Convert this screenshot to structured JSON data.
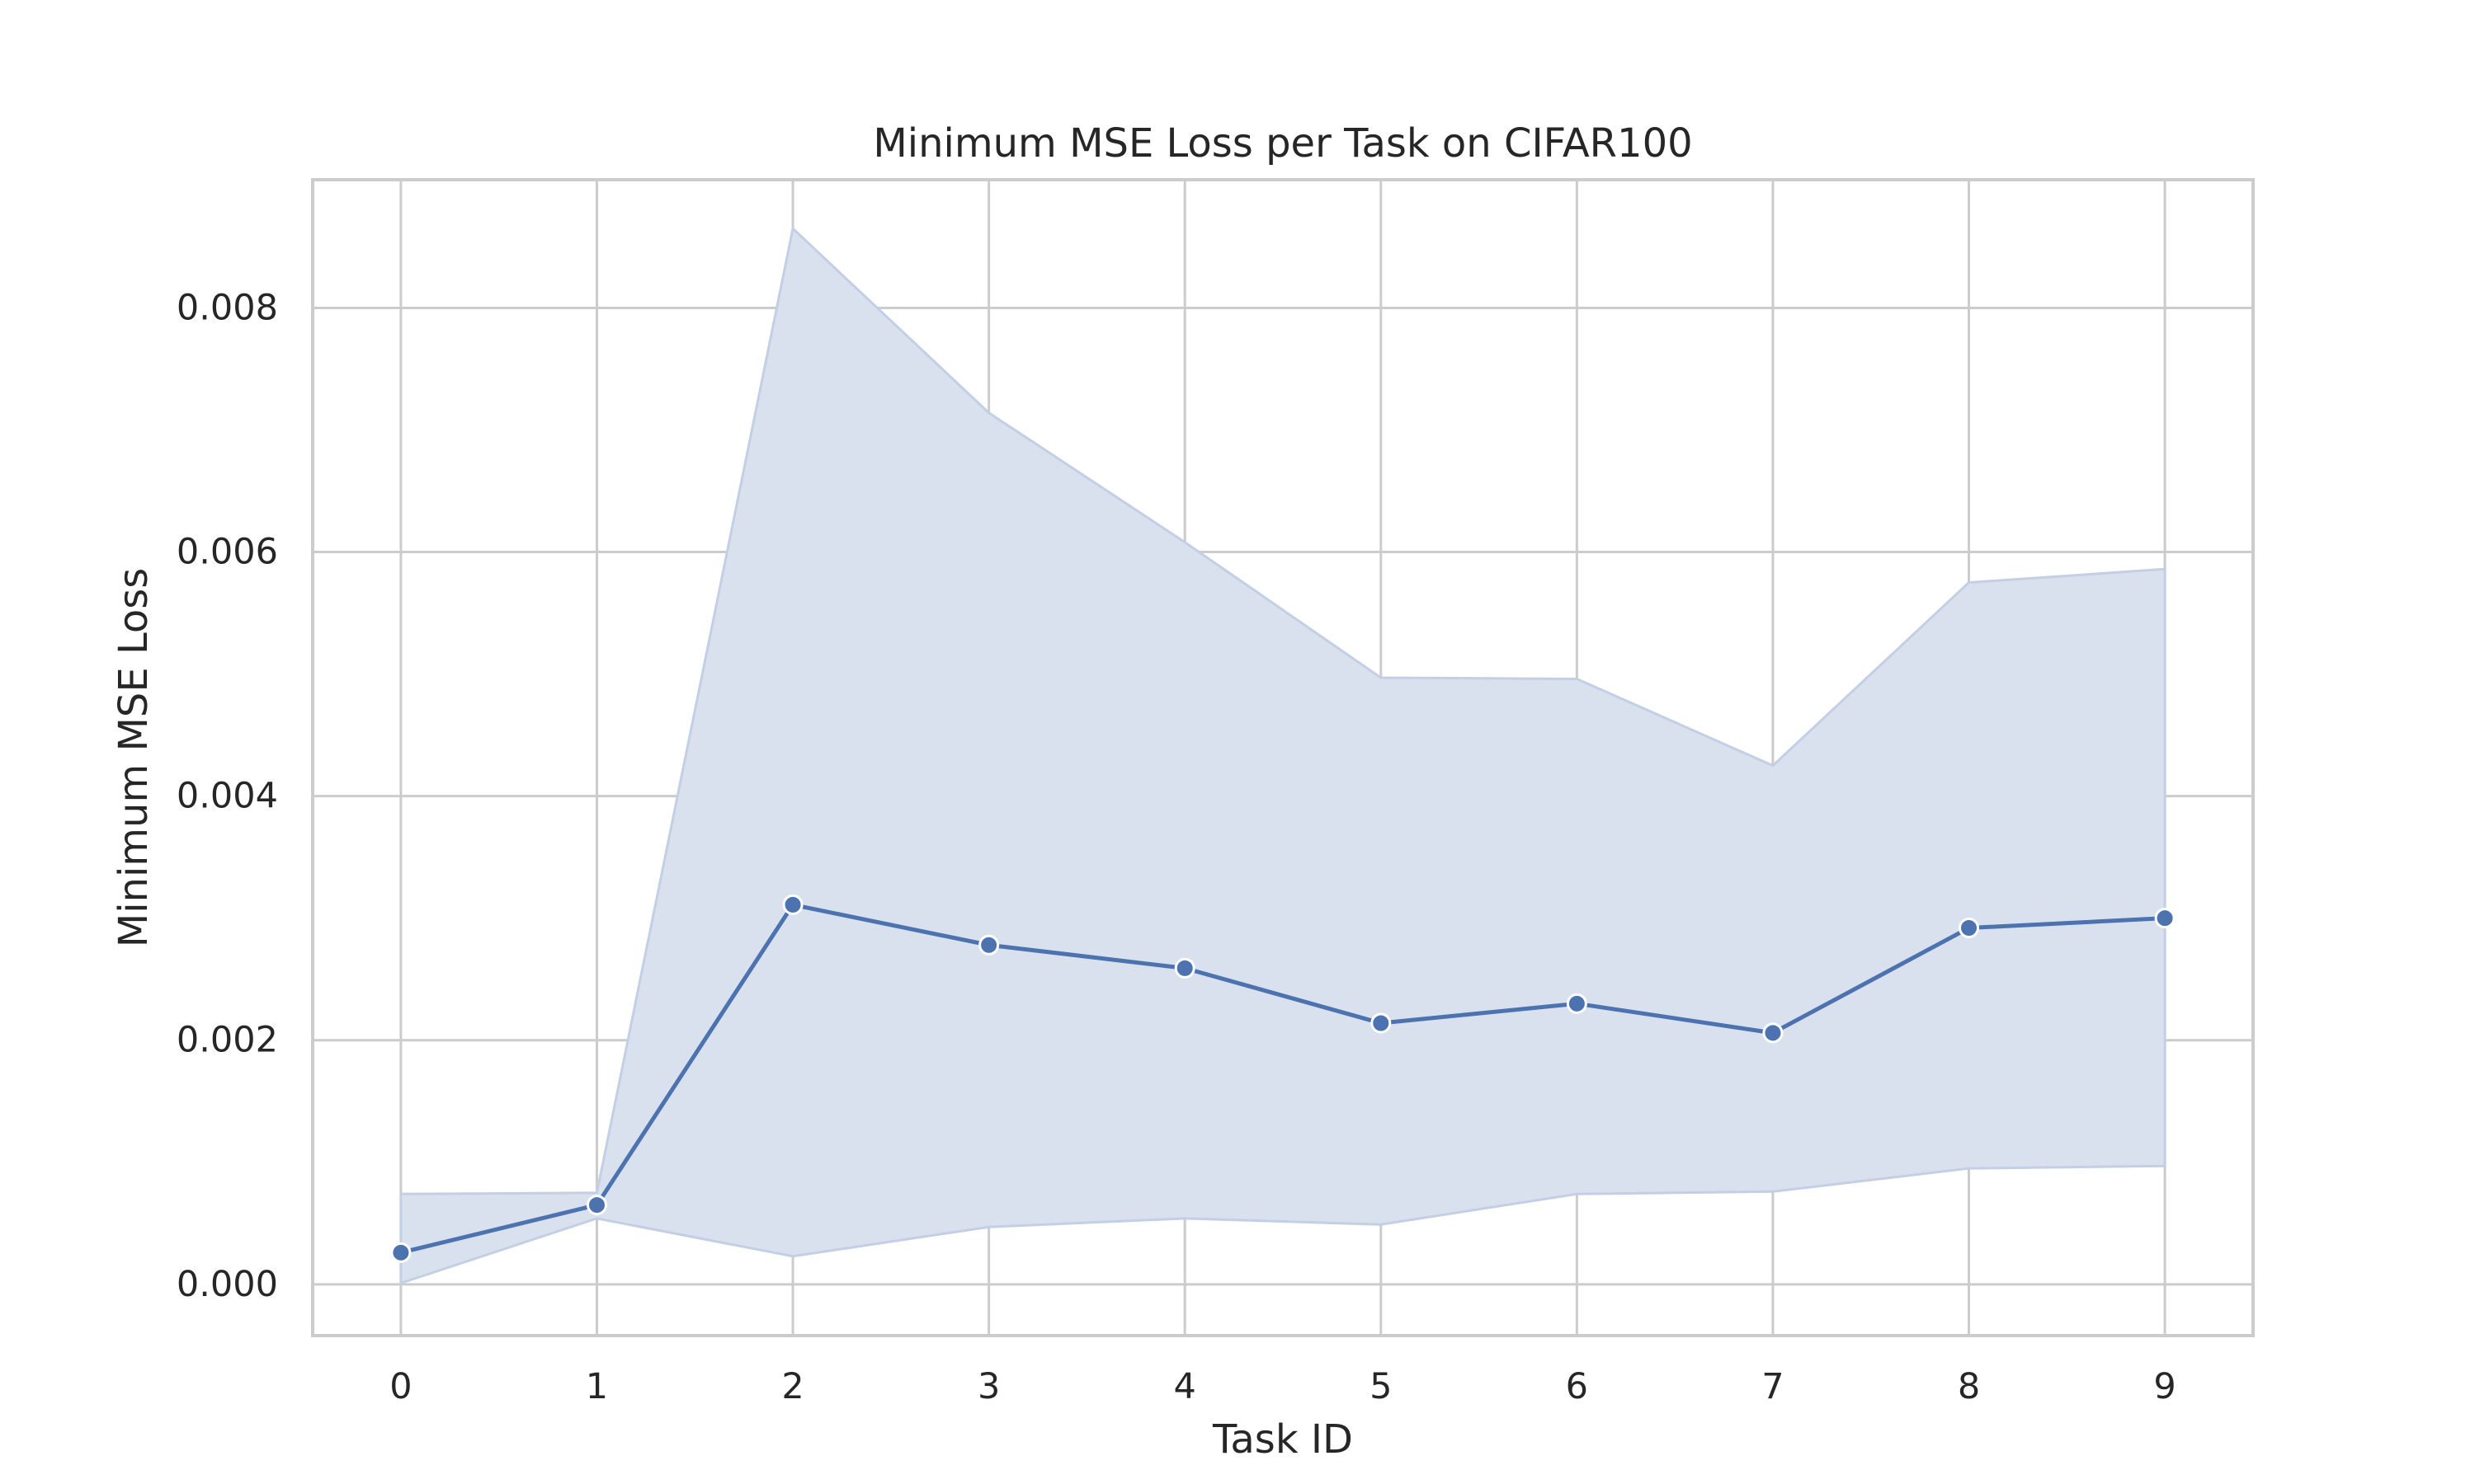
{
  "chart_data": {
    "type": "line",
    "title": "Minimum MSE Loss per Task on CIFAR100",
    "xlabel": "Task ID",
    "ylabel": "Minimum MSE Loss",
    "x": [
      0,
      1,
      2,
      3,
      4,
      5,
      6,
      7,
      8,
      9
    ],
    "xlim": [
      -0.45,
      9.45
    ],
    "ylim": [
      -0.00042,
      0.00905
    ],
    "x_ticks": [
      "0",
      "1",
      "2",
      "3",
      "4",
      "5",
      "6",
      "7",
      "8",
      "9"
    ],
    "y_ticks": [
      "0.000",
      "0.002",
      "0.004",
      "0.006",
      "0.008"
    ],
    "y_tick_values": [
      0,
      0.002,
      0.004,
      0.006,
      0.008
    ],
    "grid": true,
    "series": [
      {
        "values": [
          0.00026,
          0.00065,
          0.00311,
          0.00278,
          0.00259,
          0.00214,
          0.0023,
          0.00206,
          0.00292,
          0.003
        ],
        "band_upper": [
          0.00074,
          0.00075,
          0.00865,
          0.00714,
          0.00608,
          0.00497,
          0.00496,
          0.00425,
          0.00575,
          0.00586
        ],
        "band_lower": [
          1e-05,
          0.00054,
          0.00023,
          0.00047,
          0.00054,
          0.00049,
          0.00074,
          0.00076,
          0.00095,
          0.00097
        ],
        "color": "#4c72b0",
        "band_color": "#dae1ee"
      }
    ]
  }
}
